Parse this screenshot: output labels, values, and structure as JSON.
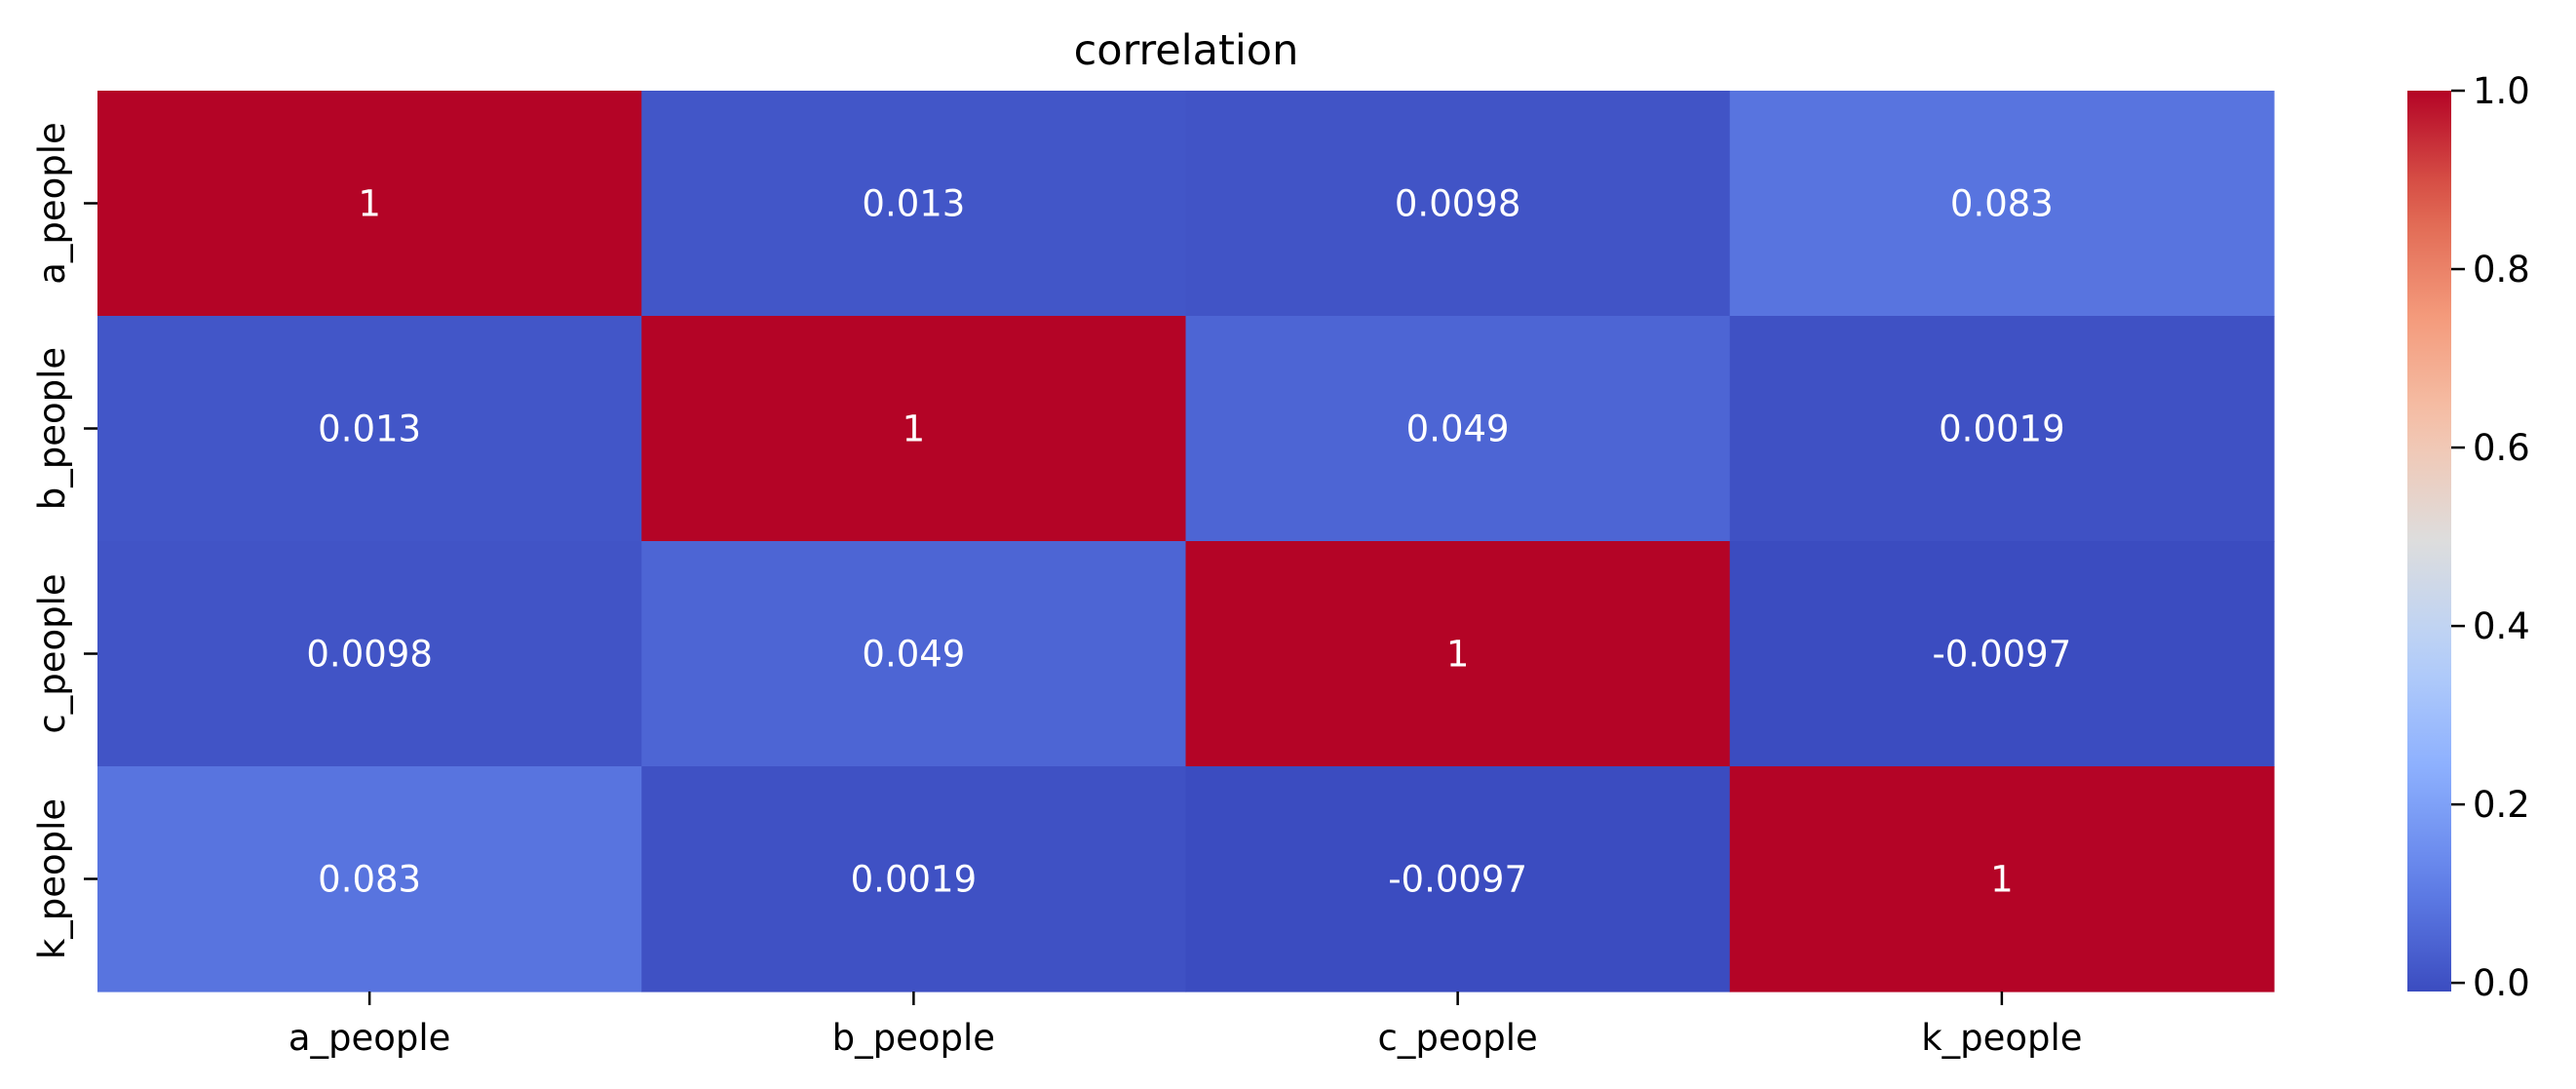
{
  "chart_data": {
    "type": "heatmap",
    "title": "correlation",
    "colormap": "coolwarm",
    "x_labels": [
      "a_people",
      "b_people",
      "c_people",
      "k_people"
    ],
    "y_labels": [
      "a_people",
      "b_people",
      "c_people",
      "k_people"
    ],
    "values": [
      [
        1,
        0.013,
        0.0098,
        0.083
      ],
      [
        0.013,
        1,
        0.049,
        0.0019
      ],
      [
        0.0098,
        0.049,
        1,
        -0.0097
      ],
      [
        0.083,
        0.0019,
        -0.0097,
        1
      ]
    ],
    "cell_labels": [
      [
        "1",
        "0.013",
        "0.0098",
        "0.083"
      ],
      [
        "0.013",
        "1",
        "0.049",
        "0.0019"
      ],
      [
        "0.0098",
        "0.049",
        "1",
        "-0.0097"
      ],
      [
        "0.083",
        "0.0019",
        "-0.0097",
        "1"
      ]
    ],
    "colorbar": {
      "min": -0.0097,
      "max": 1,
      "ticks": [
        0,
        0.2,
        0.4,
        0.6,
        0.8,
        1
      ],
      "tick_labels": [
        "0.0",
        "0.2",
        "0.4",
        "0.6",
        "0.8",
        "1.0"
      ]
    },
    "grid": false
  }
}
